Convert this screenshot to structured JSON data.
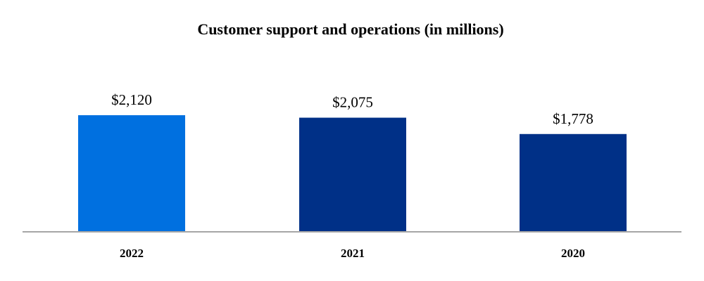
{
  "chart_data": {
    "type": "bar",
    "title": "Customer support and operations (in millions)",
    "categories": [
      "2022",
      "2021",
      "2020"
    ],
    "values": [
      2120,
      2075,
      1778
    ],
    "value_labels": [
      "$2,120",
      "$2,075",
      "$1,778"
    ],
    "bar_colors": [
      "#0070e0",
      "#003087",
      "#003087"
    ],
    "axis_line_color": "#a6a6a6",
    "xlabel": "",
    "ylabel": "",
    "ylim": [
      0,
      2120
    ],
    "grid": false,
    "legend": "none"
  }
}
